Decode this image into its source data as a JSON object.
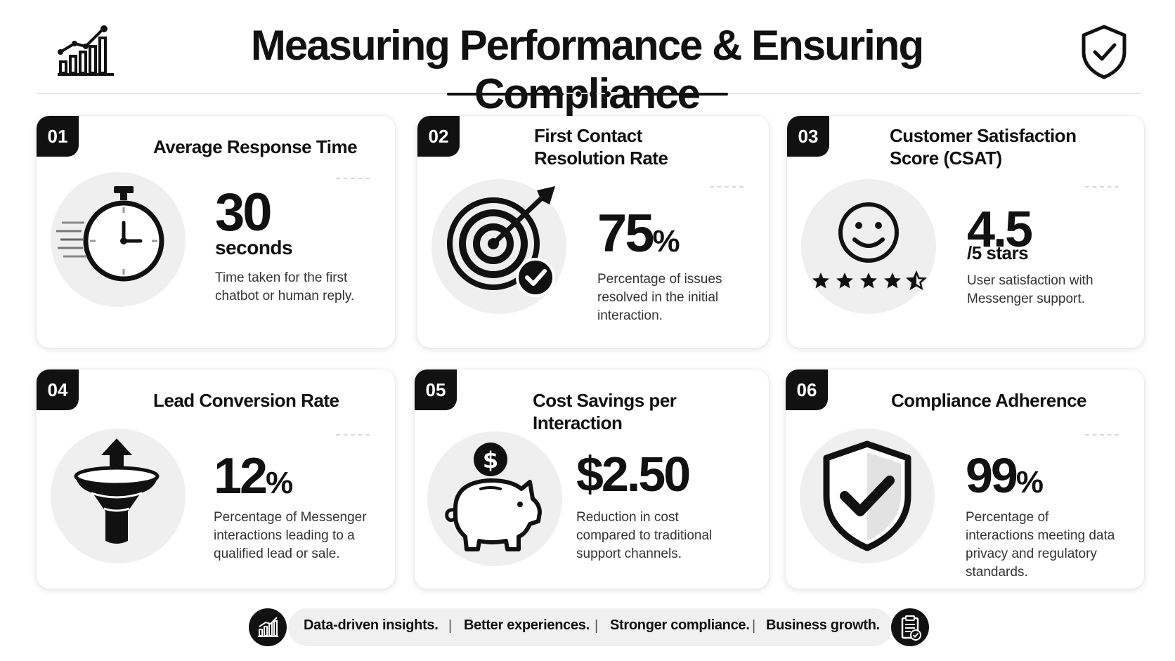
{
  "header": {
    "title": "Measuring Performance & Ensuring Compliance",
    "left_icon": "bar-chart-growth-icon",
    "right_icon": "shield-check-icon"
  },
  "cards": [
    {
      "number": "01",
      "title": "Average Response Time",
      "value": "30",
      "suffix": "",
      "unit": "seconds",
      "description": "Time taken for the first chatbot or human reply.",
      "icon": "stopwatch-icon"
    },
    {
      "number": "02",
      "title": "First Contact Resolution Rate",
      "value": "75",
      "suffix": "%",
      "unit": "",
      "description": "Percentage of issues resolved in the initial interaction.",
      "icon": "target-check-icon"
    },
    {
      "number": "03",
      "title": "Customer Satisfaction Score (CSAT)",
      "value": "4.5",
      "suffix": "",
      "unit": "/5 stars",
      "description": "User satisfaction with Messenger support.",
      "icon": "smiley-stars-icon",
      "rating": 4.5
    },
    {
      "number": "04",
      "title": "Lead Conversion Rate",
      "value": "12",
      "suffix": "%",
      "unit": "",
      "description": "Percentage of Messenger interactions leading to a qualified lead or sale.",
      "icon": "funnel-arrow-icon"
    },
    {
      "number": "05",
      "title": "Cost Savings per Interaction",
      "value": "$2.50",
      "suffix": "",
      "unit": "",
      "description": "Reduction in cost compared to traditional support channels.",
      "icon": "piggy-bank-icon"
    },
    {
      "number": "06",
      "title": "Compliance Adherence",
      "value": "99",
      "suffix": "%",
      "unit": "",
      "description": "Percentage of interactions meeting data privacy and regulatory standards.",
      "icon": "shield-check-icon"
    }
  ],
  "footer": {
    "items": [
      "Data-driven insights.",
      "Better experiences.",
      "Stronger compliance.",
      "Business growth."
    ],
    "separator": "|",
    "left_icon": "bar-chart-icon",
    "right_icon": "clipboard-check-icon"
  }
}
